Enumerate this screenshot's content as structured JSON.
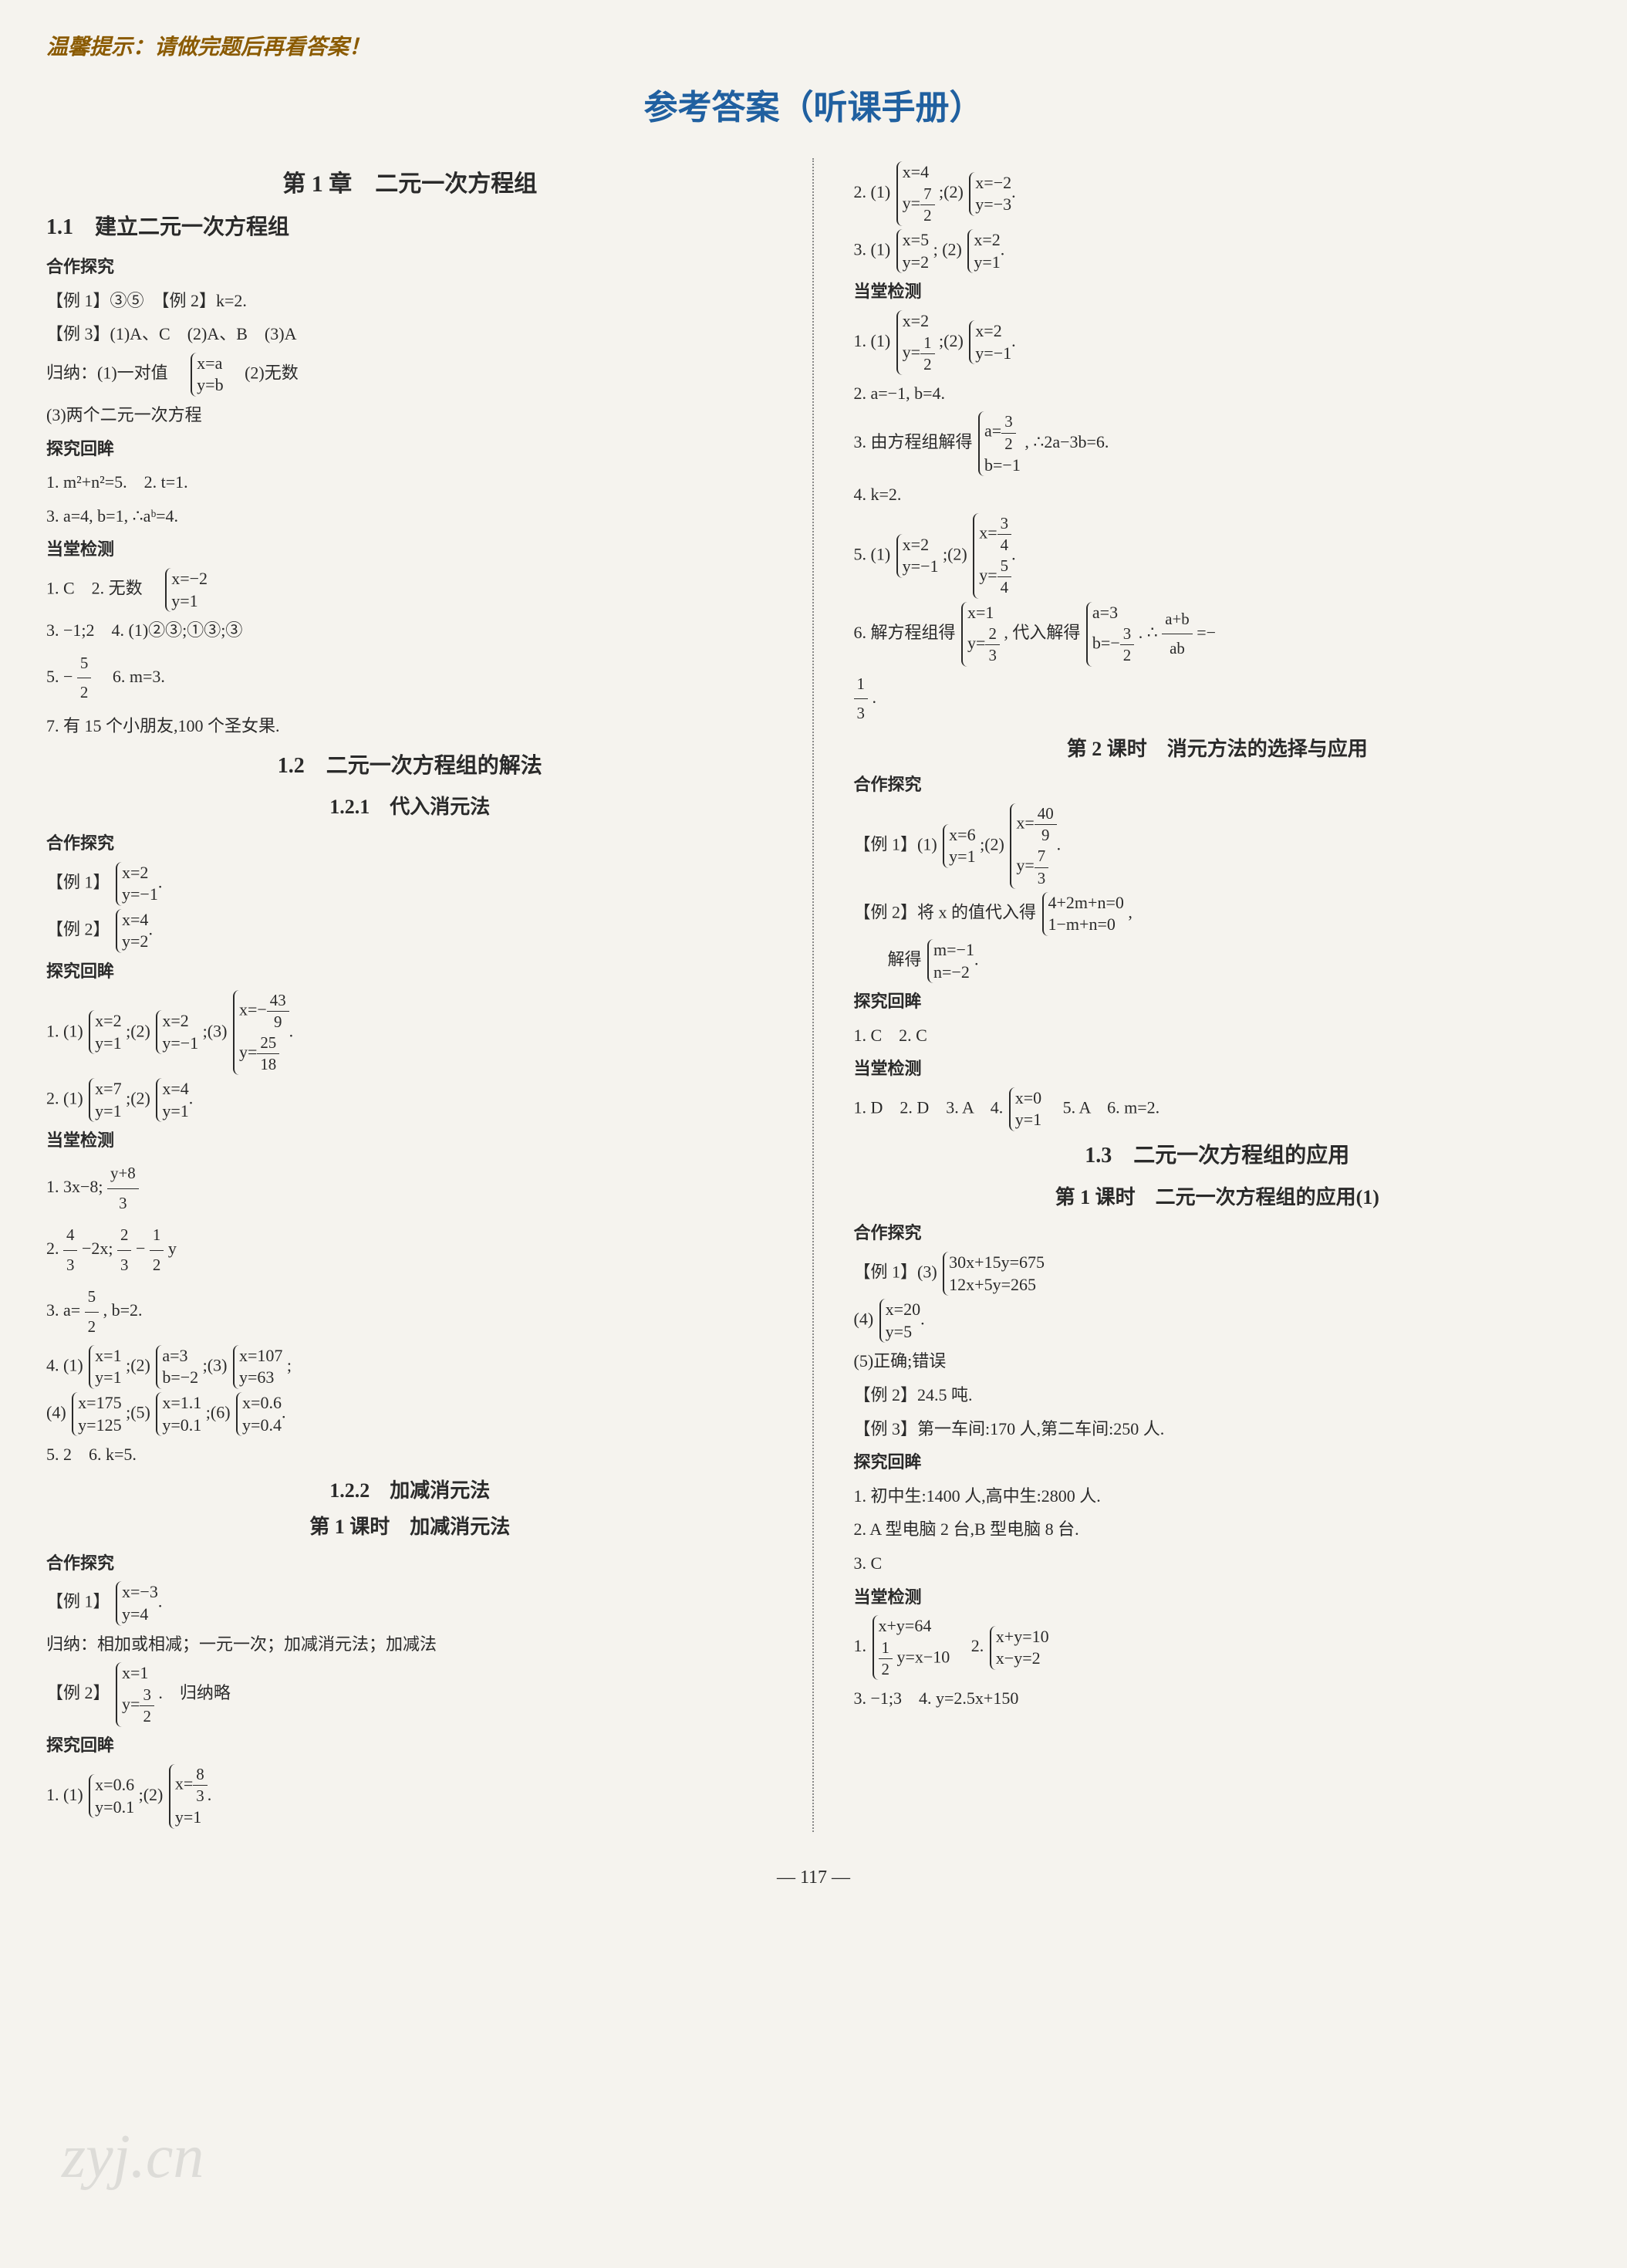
{
  "tip": "温馨提示：请做完题后再看答案！",
  "main_title": "参考答案（听课手册）",
  "page_number": "— 117 —",
  "watermark": "zyj.cn",
  "left": {
    "chapter": "第 1 章　二元一次方程组",
    "s1_1": "1.1　建立二元一次方程组",
    "hztj": "合作探究",
    "ex1": "【例 1】③⑤　【例 2】k=2.",
    "ex3": "【例 3】(1)A、C　(2)A、B　(3)A",
    "guina_pre": "归纳：(1)一对值　",
    "guina_br1": "x=a",
    "guina_br2": "y=b",
    "guina_post": "　(2)无数",
    "guina3": "(3)两个二元一次方程",
    "tjhm": "探究回眸",
    "t1": "1. m²+n²=5.　2. t=1.",
    "t3": "3. a=4, b=1, ∴aᵇ=4.",
    "dtjc": "当堂检测",
    "d1_pre": "1. C　2. 无数　",
    "d1_br1": "x=−2",
    "d1_br2": "y=1",
    "d3": "3. −1;2　4. (1)②③;①③;③",
    "d5_pre": "5. −",
    "d5_num": "5",
    "d5_den": "2",
    "d5_post": "　6. m=3.",
    "d7": "7. 有 15 个小朋友,100 个圣女果.",
    "s1_2": "1.2　二元一次方程组的解法",
    "s1_2_1": "1.2.1　代入消元法",
    "e1_pre": "【例 1】",
    "e1_br1": "x=2",
    "e1_br2": "y=−1",
    "e2_pre": "【例 2】",
    "e2_br1": "x=4",
    "e2_br2": "y=2",
    "tq1_pre": "1. (1) ",
    "tq1_1a": "x=2",
    "tq1_1b": "y=1",
    "tq1_mid1": ";(2) ",
    "tq1_2a": "x=2",
    "tq1_2b": "y=−1",
    "tq1_mid2": ";(3) ",
    "tq1_3a_pre": "x=−",
    "tq1_3a_num": "43",
    "tq1_3a_den": "9",
    "tq1_3b_pre": "y=",
    "tq1_3b_num": "25",
    "tq1_3b_den": "18",
    "tq2_pre": "2. (1) ",
    "tq2_1a": "x=7",
    "tq2_1b": "y=1",
    "tq2_mid": ";(2) ",
    "tq2_2a": "x=4",
    "tq2_2b": "y=1",
    "dd1_pre": "1. 3x−8; ",
    "dd1_num": "y+8",
    "dd1_den": "3",
    "dd2_pre": "2. ",
    "dd2_n1": "4",
    "dd2_d1": "3",
    "dd2_mid1": "−2x; ",
    "dd2_n2": "2",
    "dd2_d2": "3",
    "dd2_mid2": "−",
    "dd2_n3": "1",
    "dd2_d3": "2",
    "dd2_post": " y",
    "dd3_pre": "3. a=",
    "dd3_num": "5",
    "dd3_den": "2",
    "dd3_post": ", b=2.",
    "dd4_pre": "4. (1) ",
    "dd4_1a": "x=1",
    "dd4_1b": "y=1",
    "dd4_m1": ";(2) ",
    "dd4_2a": "a=3",
    "dd4_2b": "b=−2",
    "dd4_m2": ";(3) ",
    "dd4_3a": "x=107",
    "dd4_3b": "y=63",
    "dd4_m3": ";",
    "dd4b_pre": "(4) ",
    "dd4_4a": "x=175",
    "dd4_4b": "y=125",
    "dd4_m4": ";(5) ",
    "dd4_5a": "x=1.1",
    "dd4_5b": "y=0.1",
    "dd4_m5": ";(6) ",
    "dd4_6a": "x=0.6",
    "dd4_6b": "y=0.4",
    "dd5": "5. 2　6. k=5.",
    "s1_2_2": "1.2.2　加减消元法",
    "s1_2_2_k1": "第 1 课时　加减消元法",
    "f1_pre": "【例 1】",
    "f1_a": "x=−3",
    "f1_b": "y=4",
    "f_guina": "归纳：相加或相减；一元一次；加减消元法；加减法",
    "f2_pre": "【例 2】",
    "f2_a": "x=1",
    "f2_b_pre": "y=",
    "f2_b_num": "3",
    "f2_b_den": "2",
    "f2_post": ".　归纳略",
    "ft1_pre": "1. (1) ",
    "ft1_1a": "x=0.6",
    "ft1_1b": "y=0.1",
    "ft1_m": ";(2) ",
    "ft1_2a_pre": "x=",
    "ft1_2a_num": "8",
    "ft1_2a_den": "3",
    "ft1_2b": "y=1"
  },
  "right": {
    "r2_pre": "2. (1) ",
    "r2_1a": "x=4",
    "r2_1b_pre": "y=",
    "r2_1b_num": "7",
    "r2_1b_den": "2",
    "r2_m": ";(2) ",
    "r2_2a": "x=−2",
    "r2_2b": "y=−3",
    "r3_pre": "3. (1) ",
    "r3_1a": "x=5",
    "r3_1b": "y=2",
    "r3_m": "; (2) ",
    "r3_2a": "x=2",
    "r3_2b": "y=1",
    "dtjc": "当堂检测",
    "rd1_pre": "1. (1) ",
    "rd1_1a": "x=2",
    "rd1_1b_pre": "y=",
    "rd1_1b_num": "1",
    "rd1_1b_den": "2",
    "rd1_m": ";(2) ",
    "rd1_2a": "x=2",
    "rd1_2b": "y=−1",
    "rd2": "2. a=−1, b=4.",
    "rd3_pre": "3. 由方程组解得",
    "rd3_a_pre": "a=",
    "rd3_a_num": "3",
    "rd3_a_den": "2",
    "rd3_b": "b=−1",
    "rd3_post": ", ∴2a−3b=6.",
    "rd4": "4. k=2.",
    "rd5_pre": "5. (1) ",
    "rd5_1a": "x=2",
    "rd5_1b": "y=−1",
    "rd5_m": ";(2) ",
    "rd5_2a_pre": "x=",
    "rd5_2a_num": "3",
    "rd5_2a_den": "4",
    "rd5_2b_pre": "y=",
    "rd5_2b_num": "5",
    "rd5_2b_den": "4",
    "rd6_pre": "6. 解方程组得",
    "rd6_1a": "x=1",
    "rd6_1b_pre": "y=",
    "rd6_1b_num": "2",
    "rd6_1b_den": "3",
    "rd6_mid": ", 代入解得",
    "rd6_2a": "a=3",
    "rd6_2b_pre": "b=−",
    "rd6_2b_num": "3",
    "rd6_2b_den": "2",
    "rd6_post_pre": ". ∴",
    "rd6_f_num": "a+b",
    "rd6_f_den": "ab",
    "rd6_post_eq": "=−",
    "rd6_end_num": "1",
    "rd6_end_den": "3",
    "rd6_dot": ".",
    "s_k2": "第 2 课时　消元方法的选择与应用",
    "hztj": "合作探究",
    "re1_pre": "【例 1】(1) ",
    "re1_1a": "x=6",
    "re1_1b": "y=1",
    "re1_m": ";(2) ",
    "re1_2a_pre": "x=",
    "re1_2a_num": "40",
    "re1_2a_den": "9",
    "re1_2b_pre": "y=",
    "re1_2b_num": "7",
    "re1_2b_den": "3",
    "re2_pre": "【例 2】将 x 的值代入得",
    "re2_1a": "4+2m+n=0",
    "re2_1b": "1−m+n=0",
    "re2_post": ",",
    "re2_s_pre": "　　解得",
    "re2_sa": "m=−1",
    "re2_sb": "n=−2",
    "tjhm": "探究回眸",
    "rt1": "1. C　2. C",
    "rdd1_pre": "1. D　2. D　3. A　4. ",
    "rdd1_a": "x=0",
    "rdd1_b": "y=1",
    "rdd1_post": "　5. A　6. m=2.",
    "s1_3": "1.3　二元一次方程组的应用",
    "s1_3_k1": "第 1 课时　二元一次方程组的应用(1)",
    "g1_pre": "【例 1】(3) ",
    "g1_a": "30x+15y=675",
    "g1_b": "12x+5y=265",
    "g4_pre": "(4) ",
    "g4_a": "x=20",
    "g4_b": "y=5",
    "g5": "(5)正确;错误",
    "g_ex2": "【例 2】24.5 吨.",
    "g_ex3": "【例 3】第一车间:170 人,第二车间:250 人.",
    "gt1": "1. 初中生:1400 人,高中生:2800 人.",
    "gt2": "2. A 型电脑 2 台,B 型电脑 8 台.",
    "gt3": "3. C",
    "gd1_pre": "1. ",
    "gd1_a": "x+y=64",
    "gd1_b_n": "1",
    "gd1_b_d": "2",
    "gd1_b_post": " y=x−10",
    "gd1_m": "　2. ",
    "gd2_a": "x+y=10",
    "gd2_b": "x−y=2",
    "gd3": "3. −1;3　4. y=2.5x+150"
  }
}
